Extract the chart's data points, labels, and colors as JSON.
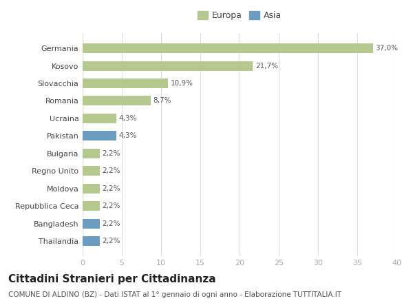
{
  "countries": [
    "Germania",
    "Kosovo",
    "Slovacchia",
    "Romania",
    "Ucraina",
    "Pakistan",
    "Bulgaria",
    "Regno Unito",
    "Moldova",
    "Repubblica Ceca",
    "Bangladesh",
    "Thailandia"
  ],
  "values": [
    37.0,
    21.7,
    10.9,
    8.7,
    4.3,
    4.3,
    2.2,
    2.2,
    2.2,
    2.2,
    2.2,
    2.2
  ],
  "labels": [
    "37,0%",
    "21,7%",
    "10,9%",
    "8,7%",
    "4,3%",
    "4,3%",
    "2,2%",
    "2,2%",
    "2,2%",
    "2,2%",
    "2,2%",
    "2,2%"
  ],
  "continents": [
    "Europa",
    "Europa",
    "Europa",
    "Europa",
    "Europa",
    "Asia",
    "Europa",
    "Europa",
    "Europa",
    "Europa",
    "Asia",
    "Asia"
  ],
  "color_europa": "#b5c98e",
  "color_asia": "#6b9dc2",
  "background_color": "#ffffff",
  "plot_bg_color": "#ffffff",
  "xlim": [
    0,
    40
  ],
  "xticks": [
    0,
    5,
    10,
    15,
    20,
    25,
    30,
    35,
    40
  ],
  "title": "Cittadini Stranieri per Cittadinanza",
  "subtitle": "COMUNE DI ALDINO (BZ) - Dati ISTAT al 1° gennaio di ogni anno - Elaborazione TUTTITALIA.IT",
  "legend_europa": "Europa",
  "legend_asia": "Asia",
  "bar_height": 0.55,
  "label_fontsize": 7.5,
  "title_fontsize": 11,
  "subtitle_fontsize": 7.5,
  "tick_fontsize": 8,
  "legend_fontsize": 9,
  "grid_color": "#dddddd",
  "text_color": "#555555",
  "ytick_color": "#444444",
  "xtick_color": "#aaaaaa"
}
